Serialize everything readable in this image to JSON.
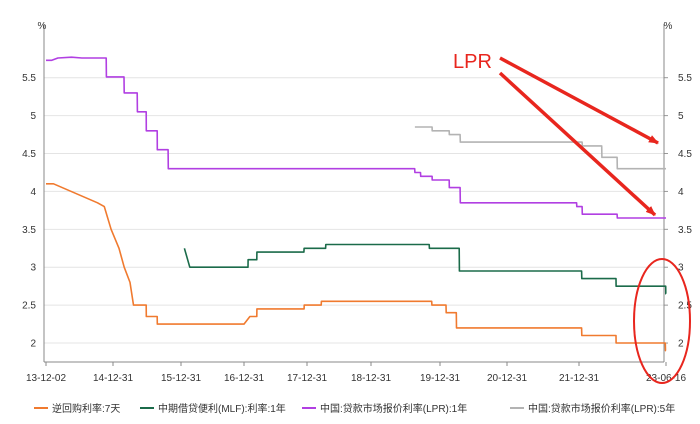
{
  "chart_data": {
    "type": "line",
    "y_unit_left": "%",
    "y_unit_right": "%",
    "x_tick_labels": [
      "13-12-02",
      "14-12-31",
      "15-12-31",
      "16-12-31",
      "17-12-31",
      "18-12-31",
      "19-12-31",
      "20-12-31",
      "21-12-31",
      "23-06-16"
    ],
    "y_ticks": [
      2,
      2.5,
      3,
      3.5,
      4,
      4.5,
      5,
      5.5
    ],
    "y_tick_labels": [
      "2",
      "2.5",
      "3",
      "3.5",
      "4",
      "4.5",
      "5",
      "5.5"
    ],
    "ylim": [
      1.75,
      6.05
    ],
    "grid": true,
    "legend_position": "bottom",
    "series": [
      {
        "name": "逆回购利率:7天",
        "color": "#f07a2f",
        "points": [
          [
            "2013-12-02",
            4.1
          ],
          [
            "2014-01-15",
            4.1
          ],
          [
            "2014-10-01",
            3.85
          ],
          [
            "2014-11-10",
            3.8
          ],
          [
            "2014-12-20",
            3.5
          ],
          [
            "2015-02-01",
            3.25
          ],
          [
            "2015-03-01",
            3.0
          ],
          [
            "2015-04-01",
            2.8
          ],
          [
            "2015-04-20",
            2.5
          ],
          [
            "2015-06-27",
            2.5
          ],
          [
            "2015-06-28",
            2.35
          ],
          [
            "2015-08-25",
            2.35
          ],
          [
            "2015-08-26",
            2.25
          ],
          [
            "2016-12-31",
            2.25
          ],
          [
            "2017-02-03",
            2.35
          ],
          [
            "2017-03-15",
            2.35
          ],
          [
            "2017-03-16",
            2.45
          ],
          [
            "2017-12-14",
            2.45
          ],
          [
            "2017-12-15",
            2.5
          ],
          [
            "2018-03-22",
            2.5
          ],
          [
            "2018-03-23",
            2.55
          ],
          [
            "2019-11-17",
            2.55
          ],
          [
            "2019-11-18",
            2.5
          ],
          [
            "2020-02-02",
            2.5
          ],
          [
            "2020-02-03",
            2.4
          ],
          [
            "2020-03-29",
            2.4
          ],
          [
            "2020-03-30",
            2.2
          ],
          [
            "2022-01-16",
            2.2
          ],
          [
            "2022-01-17",
            2.1
          ],
          [
            "2022-08-14",
            2.1
          ],
          [
            "2022-08-15",
            2.0
          ],
          [
            "2023-06-12",
            2.0
          ],
          [
            "2023-06-13",
            1.9
          ],
          [
            "2023-06-16",
            1.9
          ]
        ]
      },
      {
        "name": "中期借贷便利(MLF):利率:1年",
        "color": "#1b6b4a",
        "points": [
          [
            "2016-01-20",
            3.25
          ],
          [
            "2016-02-20",
            3.0
          ],
          [
            "2017-01-23",
            3.0
          ],
          [
            "2017-01-24",
            3.1
          ],
          [
            "2017-03-15",
            3.1
          ],
          [
            "2017-03-16",
            3.2
          ],
          [
            "2017-12-13",
            3.2
          ],
          [
            "2017-12-14",
            3.25
          ],
          [
            "2018-04-16",
            3.25
          ],
          [
            "2018-04-17",
            3.3
          ],
          [
            "2019-11-04",
            3.3
          ],
          [
            "2019-11-05",
            3.25
          ],
          [
            "2020-04-14",
            3.25
          ],
          [
            "2020-04-15",
            2.95
          ],
          [
            "2022-01-16",
            2.95
          ],
          [
            "2022-01-17",
            2.85
          ],
          [
            "2022-08-14",
            2.85
          ],
          [
            "2022-08-15",
            2.75
          ],
          [
            "2023-06-14",
            2.75
          ],
          [
            "2023-06-15",
            2.65
          ],
          [
            "2023-06-16",
            2.65
          ]
        ]
      },
      {
        "name": "中国:贷款市场报价利率(LPR):1年",
        "color": "#b13fe2",
        "points": [
          [
            "2013-12-02",
            5.73
          ],
          [
            "2014-01-05",
            5.73
          ],
          [
            "2014-02-10",
            5.76
          ],
          [
            "2014-05-01",
            5.77
          ],
          [
            "2014-07-01",
            5.76
          ],
          [
            "2014-11-21",
            5.76
          ],
          [
            "2014-11-22",
            5.51
          ],
          [
            "2015-02-28",
            5.51
          ],
          [
            "2015-03-01",
            5.3
          ],
          [
            "2015-05-10",
            5.3
          ],
          [
            "2015-05-11",
            5.05
          ],
          [
            "2015-06-27",
            5.05
          ],
          [
            "2015-06-28",
            4.8
          ],
          [
            "2015-08-25",
            4.8
          ],
          [
            "2015-08-26",
            4.55
          ],
          [
            "2015-10-23",
            4.55
          ],
          [
            "2015-10-24",
            4.3
          ],
          [
            "2019-08-19",
            4.3
          ],
          [
            "2019-08-20",
            4.25
          ],
          [
            "2019-09-19",
            4.25
          ],
          [
            "2019-09-20",
            4.2
          ],
          [
            "2019-11-19",
            4.2
          ],
          [
            "2019-11-20",
            4.15
          ],
          [
            "2020-02-19",
            4.15
          ],
          [
            "2020-02-20",
            4.05
          ],
          [
            "2020-04-19",
            4.05
          ],
          [
            "2020-04-20",
            3.85
          ],
          [
            "2021-12-19",
            3.85
          ],
          [
            "2021-12-20",
            3.8
          ],
          [
            "2022-01-19",
            3.8
          ],
          [
            "2022-01-20",
            3.7
          ],
          [
            "2022-08-21",
            3.7
          ],
          [
            "2022-08-22",
            3.65
          ],
          [
            "2023-06-16",
            3.65
          ]
        ]
      },
      {
        "name": "中国:贷款市场报价利率(LPR):5年",
        "color": "#b3b3b3",
        "points": [
          [
            "2019-08-20",
            4.85
          ],
          [
            "2019-11-19",
            4.85
          ],
          [
            "2019-11-20",
            4.8
          ],
          [
            "2020-02-19",
            4.8
          ],
          [
            "2020-02-20",
            4.75
          ],
          [
            "2020-04-19",
            4.75
          ],
          [
            "2020-04-20",
            4.65
          ],
          [
            "2022-01-19",
            4.65
          ],
          [
            "2022-01-20",
            4.6
          ],
          [
            "2022-05-19",
            4.6
          ],
          [
            "2022-05-20",
            4.45
          ],
          [
            "2022-08-21",
            4.45
          ],
          [
            "2022-08-22",
            4.3
          ],
          [
            "2023-06-16",
            4.3
          ]
        ]
      }
    ],
    "annotations": [
      {
        "text": "LPR",
        "color": "#e8261e"
      }
    ]
  }
}
